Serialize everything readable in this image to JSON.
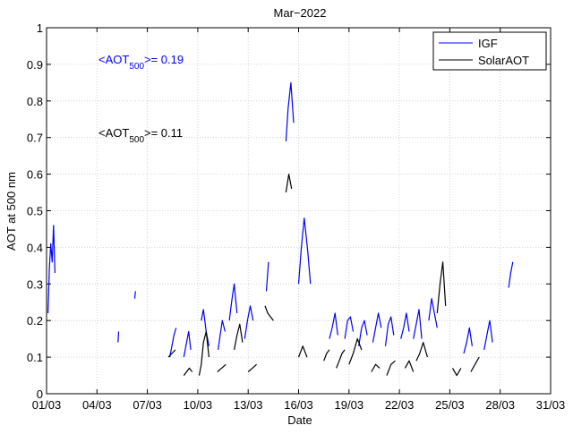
{
  "chart_data": {
    "type": "line",
    "title": "Mar−2022",
    "xlabel": "Date",
    "ylabel": "AOT at 500 nm",
    "xlim": [
      "2022-03-01",
      "2022-03-31"
    ],
    "ylim": [
      0,
      1
    ],
    "x_ticks": [
      "01/03",
      "04/03",
      "07/03",
      "10/03",
      "13/03",
      "16/03",
      "19/03",
      "22/03",
      "25/03",
      "28/03",
      "31/03"
    ],
    "y_ticks": [
      "0",
      "0.1",
      "0.2",
      "0.3",
      "0.4",
      "0.5",
      "0.6",
      "0.7",
      "0.8",
      "0.9",
      "1"
    ],
    "grid": true,
    "legend_position": "top-right",
    "annotations": [
      {
        "text": "<AOT",
        "subscript": "500",
        "suffix": ">= 0.19",
        "color": "#0000ff"
      },
      {
        "text": "<AOT",
        "subscript": "500",
        "suffix": ">= 0.11",
        "color": "#000000"
      }
    ],
    "series": [
      {
        "name": "IGF",
        "color": "#0000ff",
        "segments": [
          [
            [
              "2022-03-01T02:00",
              0.22
            ],
            [
              "2022-03-01T04:00",
              0.34
            ],
            [
              "2022-03-01T06:00",
              0.41
            ],
            [
              "2022-03-01T08:00",
              0.36
            ],
            [
              "2022-03-01T10:00",
              0.46
            ],
            [
              "2022-03-01T12:00",
              0.33
            ]
          ],
          [
            [
              "2022-03-05T06:00",
              0.14
            ],
            [
              "2022-03-05T07:00",
              0.17
            ]
          ],
          [
            [
              "2022-03-06T06:00",
              0.26
            ],
            [
              "2022-03-06T07:00",
              0.28
            ]
          ],
          [
            [
              "2022-03-08T08:00",
              0.1
            ],
            [
              "2022-03-08T11:00",
              0.13
            ],
            [
              "2022-03-08T14:00",
              0.16
            ],
            [
              "2022-03-08T17:00",
              0.18
            ]
          ],
          [
            [
              "2022-03-09T04:00",
              0.1
            ],
            [
              "2022-03-09T08:00",
              0.14
            ],
            [
              "2022-03-09T11:00",
              0.17
            ],
            [
              "2022-03-09T14:00",
              0.12
            ]
          ],
          [
            [
              "2022-03-10T05:00",
              0.2
            ],
            [
              "2022-03-10T08:00",
              0.23
            ],
            [
              "2022-03-10T12:00",
              0.17
            ],
            [
              "2022-03-10T16:00",
              0.13
            ]
          ],
          [
            [
              "2022-03-11T05:00",
              0.12
            ],
            [
              "2022-03-11T08:00",
              0.16
            ],
            [
              "2022-03-11T11:00",
              0.2
            ],
            [
              "2022-03-11T15:00",
              0.17
            ]
          ],
          [
            [
              "2022-03-11T21:00",
              0.2
            ],
            [
              "2022-03-12T01:00",
              0.26
            ],
            [
              "2022-03-12T04:00",
              0.3
            ],
            [
              "2022-03-12T08:00",
              0.22
            ]
          ],
          [
            [
              "2022-03-12T19:00",
              0.15
            ],
            [
              "2022-03-12T23:00",
              0.2
            ],
            [
              "2022-03-13T03:00",
              0.24
            ],
            [
              "2022-03-13T07:00",
              0.2
            ]
          ],
          [
            [
              "2022-03-14T02:00",
              0.28
            ],
            [
              "2022-03-14T05:00",
              0.36
            ]
          ],
          [
            [
              "2022-03-15T06:00",
              0.69
            ],
            [
              "2022-03-15T09:00",
              0.78
            ],
            [
              "2022-03-15T13:00",
              0.85
            ],
            [
              "2022-03-15T17:00",
              0.74
            ]
          ],
          [
            [
              "2022-03-16T00:00",
              0.3
            ],
            [
              "2022-03-16T04:00",
              0.4
            ],
            [
              "2022-03-16T08:00",
              0.48
            ],
            [
              "2022-03-16T13:00",
              0.39
            ],
            [
              "2022-03-16T17:00",
              0.3
            ]
          ],
          [
            [
              "2022-03-17T20:00",
              0.15
            ],
            [
              "2022-03-18T00:00",
              0.18
            ],
            [
              "2022-03-18T04:00",
              0.22
            ],
            [
              "2022-03-18T08:00",
              0.16
            ]
          ],
          [
            [
              "2022-03-18T18:00",
              0.15
            ],
            [
              "2022-03-18T22:00",
              0.2
            ],
            [
              "2022-03-19T02:00",
              0.21
            ],
            [
              "2022-03-19T06:00",
              0.17
            ]
          ],
          [
            [
              "2022-03-19T14:00",
              0.13
            ],
            [
              "2022-03-19T18:00",
              0.18
            ],
            [
              "2022-03-19T22:00",
              0.2
            ],
            [
              "2022-03-20T02:00",
              0.16
            ]
          ],
          [
            [
              "2022-03-20T10:00",
              0.14
            ],
            [
              "2022-03-20T14:00",
              0.18
            ],
            [
              "2022-03-20T18:00",
              0.22
            ],
            [
              "2022-03-20T22:00",
              0.18
            ]
          ],
          [
            [
              "2022-03-21T04:00",
              0.13
            ],
            [
              "2022-03-21T08:00",
              0.19
            ],
            [
              "2022-03-21T12:00",
              0.21
            ],
            [
              "2022-03-21T16:00",
              0.16
            ]
          ],
          [
            [
              "2022-03-22T02:00",
              0.15
            ],
            [
              "2022-03-22T06:00",
              0.18
            ],
            [
              "2022-03-22T10:00",
              0.22
            ],
            [
              "2022-03-22T14:00",
              0.17
            ]
          ],
          [
            [
              "2022-03-22T20:00",
              0.15
            ],
            [
              "2022-03-23T00:00",
              0.19
            ],
            [
              "2022-03-23T04:00",
              0.23
            ],
            [
              "2022-03-23T08:00",
              0.15
            ]
          ],
          [
            [
              "2022-03-23T18:00",
              0.2
            ],
            [
              "2022-03-23T22:00",
              0.26
            ],
            [
              "2022-03-24T02:00",
              0.22
            ],
            [
              "2022-03-24T06:00",
              0.18
            ]
          ],
          [
            [
              "2022-03-25T20:00",
              0.11
            ],
            [
              "2022-03-26T00:00",
              0.14
            ],
            [
              "2022-03-26T04:00",
              0.18
            ],
            [
              "2022-03-26T08:00",
              0.13
            ]
          ],
          [
            [
              "2022-03-27T01:00",
              0.12
            ],
            [
              "2022-03-27T05:00",
              0.16
            ],
            [
              "2022-03-27T09:00",
              0.2
            ],
            [
              "2022-03-27T13:00",
              0.14
            ]
          ],
          [
            [
              "2022-03-28T12:00",
              0.29
            ],
            [
              "2022-03-28T15:00",
              0.33
            ],
            [
              "2022-03-28T18:00",
              0.36
            ]
          ]
        ]
      },
      {
        "name": "SolarAOT",
        "color": "#000000",
        "segments": [
          [
            [
              "2022-03-08T06:00",
              0.1
            ],
            [
              "2022-03-08T11:00",
              0.11
            ],
            [
              "2022-03-08T16:00",
              0.12
            ]
          ],
          [
            [
              "2022-03-09T04:00",
              0.05
            ],
            [
              "2022-03-09T08:00",
              0.06
            ],
            [
              "2022-03-09T12:00",
              0.07
            ],
            [
              "2022-03-09T16:00",
              0.06
            ]
          ],
          [
            [
              "2022-03-10T02:00",
              0.05
            ],
            [
              "2022-03-10T05:00",
              0.08
            ],
            [
              "2022-03-10T08:00",
              0.14
            ],
            [
              "2022-03-10T12:00",
              0.17
            ],
            [
              "2022-03-10T16:00",
              0.1
            ]
          ],
          [
            [
              "2022-03-11T04:00",
              0.06
            ],
            [
              "2022-03-11T10:00",
              0.07
            ],
            [
              "2022-03-11T16:00",
              0.08
            ]
          ],
          [
            [
              "2022-03-12T04:00",
              0.12
            ],
            [
              "2022-03-12T08:00",
              0.16
            ],
            [
              "2022-03-12T12:00",
              0.19
            ],
            [
              "2022-03-12T16:00",
              0.14
            ]
          ],
          [
            [
              "2022-03-13T00:00",
              0.06
            ],
            [
              "2022-03-13T06:00",
              0.07
            ],
            [
              "2022-03-13T12:00",
              0.08
            ]
          ],
          [
            [
              "2022-03-14T00:00",
              0.24
            ],
            [
              "2022-03-14T04:00",
              0.22
            ],
            [
              "2022-03-14T08:00",
              0.21
            ],
            [
              "2022-03-14T12:00",
              0.2
            ]
          ],
          [
            [
              "2022-03-15T06:00",
              0.55
            ],
            [
              "2022-03-15T10:00",
              0.6
            ],
            [
              "2022-03-15T14:00",
              0.56
            ]
          ],
          [
            [
              "2022-03-16T00:00",
              0.1
            ],
            [
              "2022-03-16T06:00",
              0.13
            ],
            [
              "2022-03-16T12:00",
              0.1
            ]
          ],
          [
            [
              "2022-03-17T12:00",
              0.09
            ],
            [
              "2022-03-17T16:00",
              0.11
            ],
            [
              "2022-03-17T20:00",
              0.12
            ]
          ],
          [
            [
              "2022-03-18T06:00",
              0.07
            ],
            [
              "2022-03-18T10:00",
              0.09
            ],
            [
              "2022-03-18T14:00",
              0.11
            ],
            [
              "2022-03-18T18:00",
              0.12
            ]
          ],
          [
            [
              "2022-03-19T00:00",
              0.08
            ],
            [
              "2022-03-19T06:00",
              0.11
            ],
            [
              "2022-03-19T12:00",
              0.15
            ],
            [
              "2022-03-19T18:00",
              0.12
            ]
          ],
          [
            [
              "2022-03-20T08:00",
              0.06
            ],
            [
              "2022-03-20T14:00",
              0.08
            ],
            [
              "2022-03-20T20:00",
              0.07
            ]
          ],
          [
            [
              "2022-03-21T06:00",
              0.05
            ],
            [
              "2022-03-21T12:00",
              0.08
            ],
            [
              "2022-03-21T18:00",
              0.09
            ]
          ],
          [
            [
              "2022-03-22T08:00",
              0.07
            ],
            [
              "2022-03-22T14:00",
              0.09
            ],
            [
              "2022-03-22T20:00",
              0.06
            ]
          ],
          [
            [
              "2022-03-23T00:00",
              0.09
            ],
            [
              "2022-03-23T05:00",
              0.11
            ],
            [
              "2022-03-23T10:00",
              0.14
            ],
            [
              "2022-03-23T16:00",
              0.1
            ]
          ],
          [
            [
              "2022-03-24T06:00",
              0.22
            ],
            [
              "2022-03-24T10:00",
              0.3
            ],
            [
              "2022-03-24T14:00",
              0.36
            ],
            [
              "2022-03-24T18:00",
              0.24
            ]
          ],
          [
            [
              "2022-03-25T04:00",
              0.07
            ],
            [
              "2022-03-25T10:00",
              0.05
            ],
            [
              "2022-03-25T16:00",
              0.07
            ]
          ],
          [
            [
              "2022-03-26T06:00",
              0.06
            ],
            [
              "2022-03-26T12:00",
              0.08
            ],
            [
              "2022-03-26T18:00",
              0.1
            ]
          ]
        ]
      }
    ]
  }
}
